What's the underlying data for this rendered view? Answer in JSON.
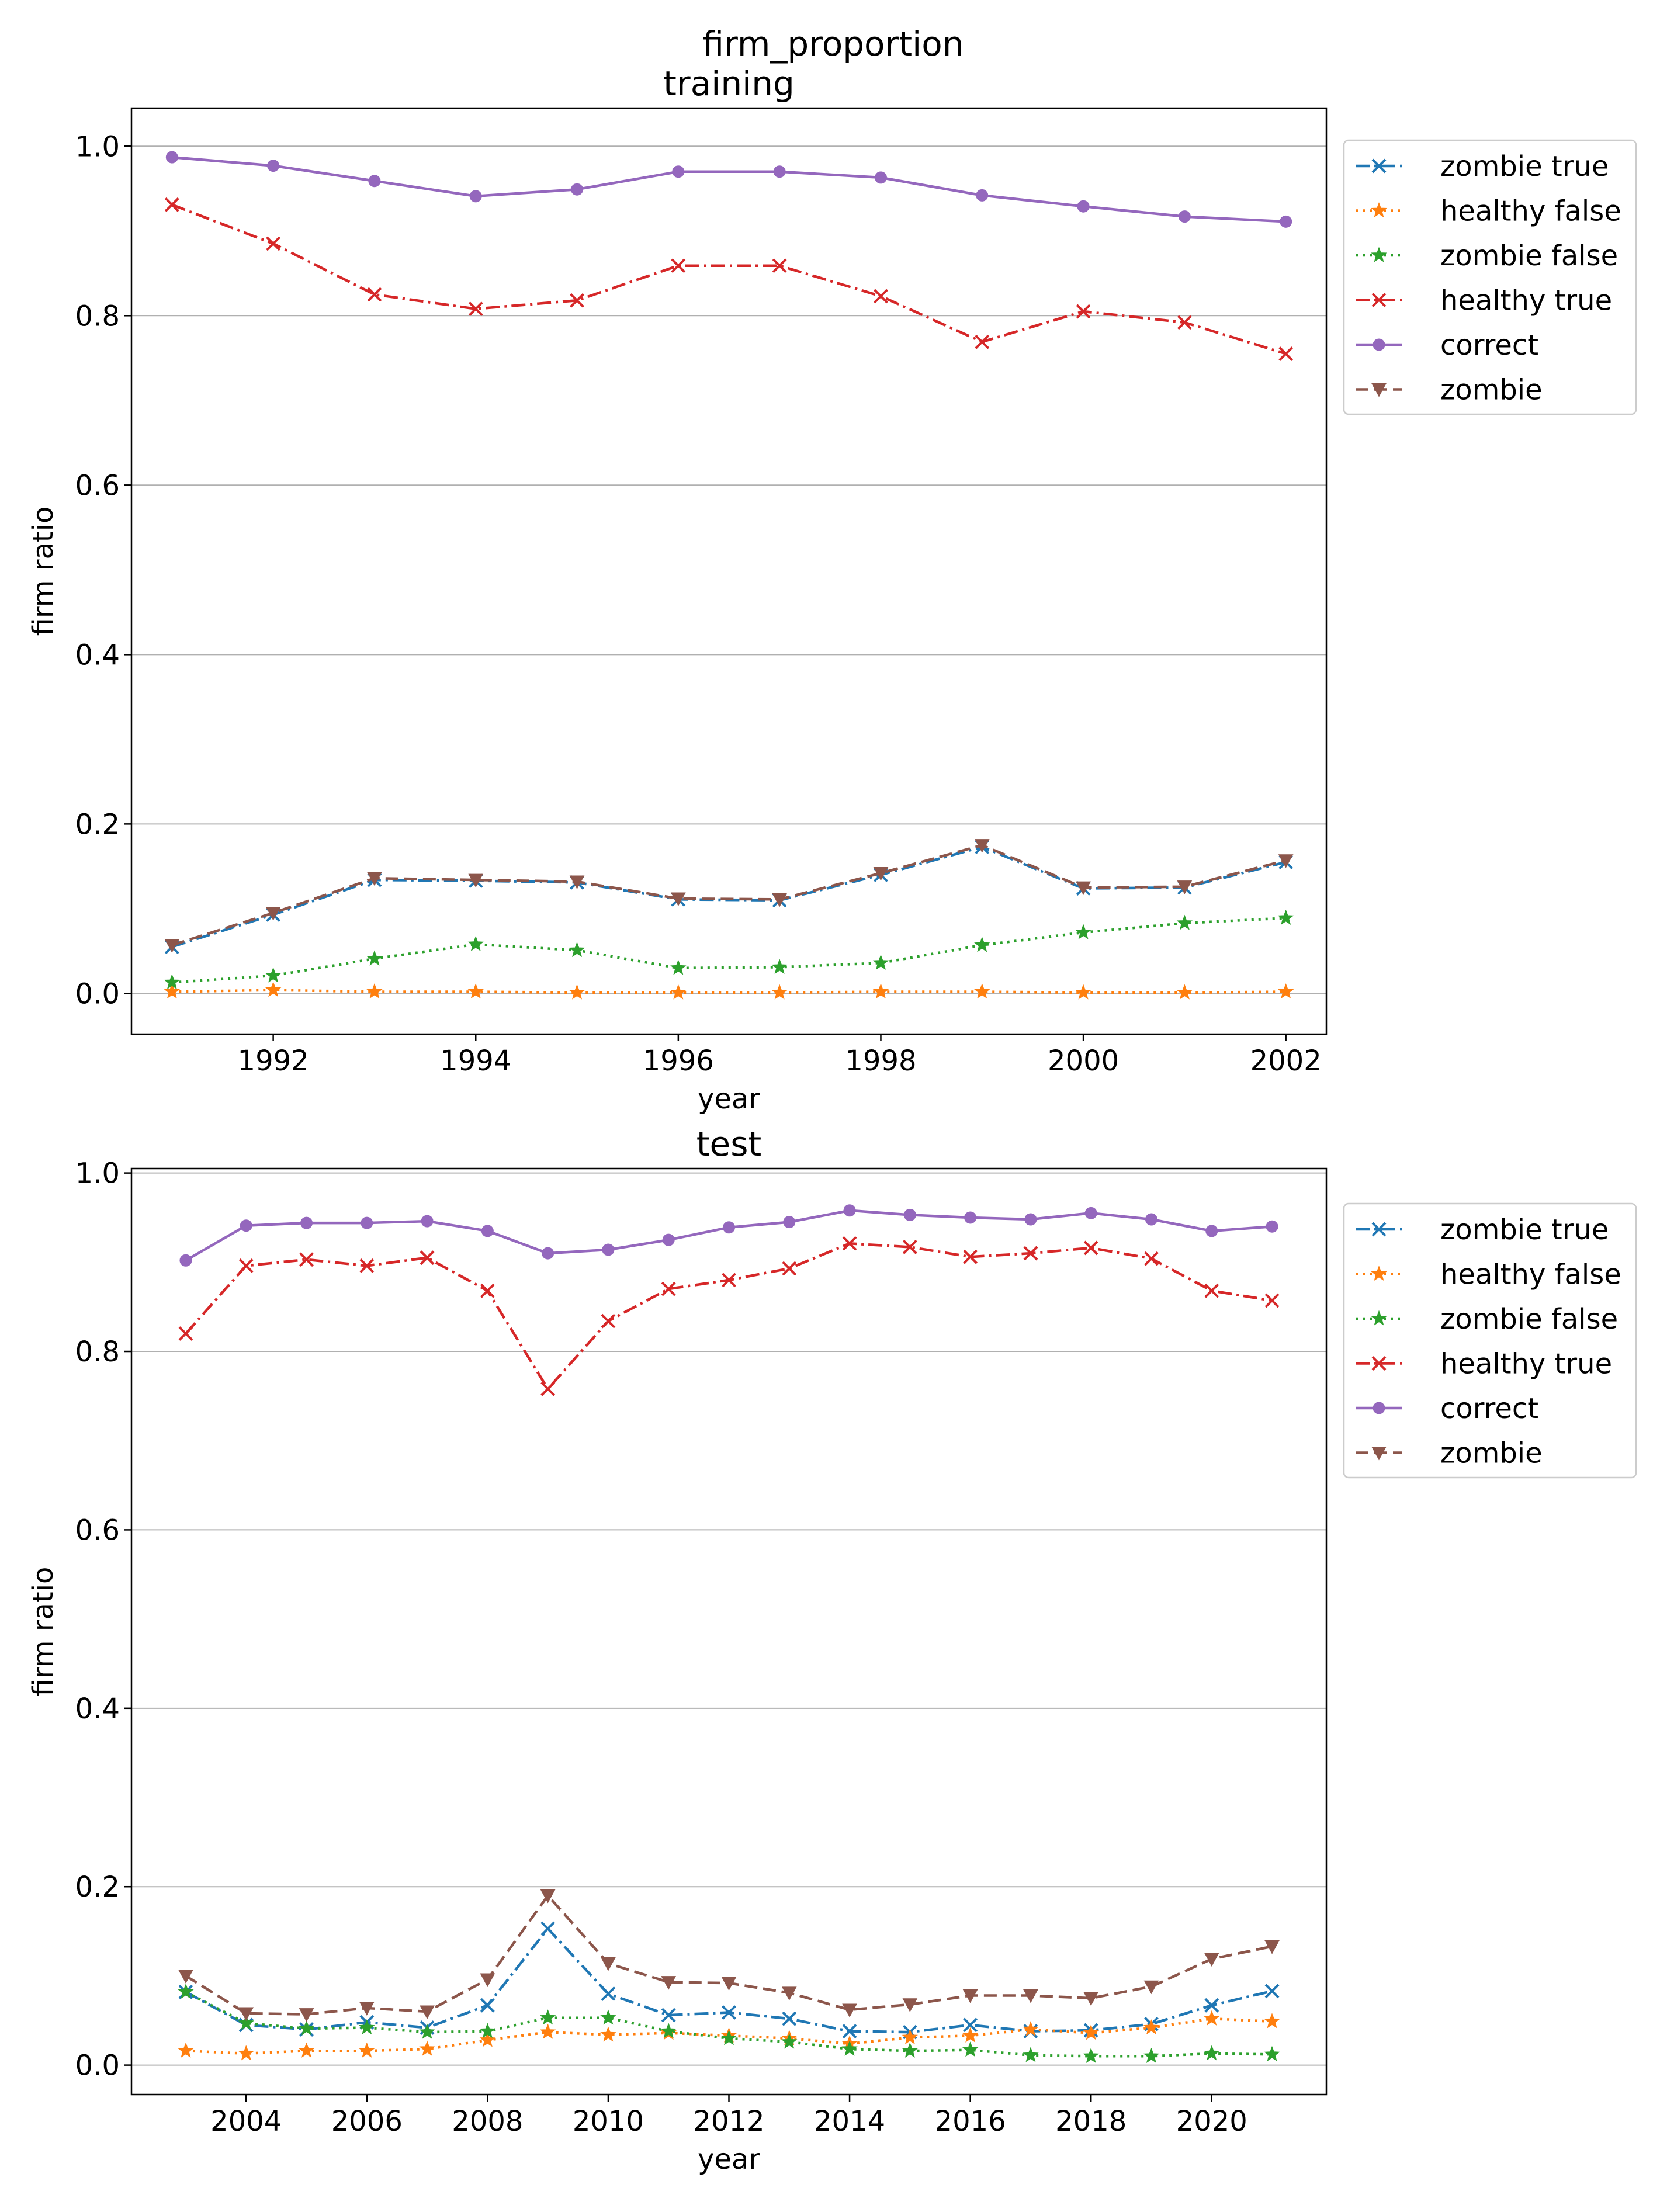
{
  "suptitle": "firm_proportion",
  "colors": {
    "zombie_true": "#1f77b4",
    "healthy_false": "#ff7f0e",
    "zombie_false": "#2ca02c",
    "healthy_true": "#d62728",
    "correct": "#9467bd",
    "zombie": "#8c564b",
    "grid": "#b0b0b0",
    "axis": "#000000"
  },
  "chart_data": [
    {
      "type": "line",
      "title": "training",
      "xlabel": "year",
      "ylabel": "firm ratio",
      "xlim": [
        1990.6,
        2002.4
      ],
      "ylim": [
        -0.048,
        1.045
      ],
      "xticks": [
        1992,
        1994,
        1996,
        1998,
        2000,
        2002
      ],
      "xtick_labels": [
        "1992",
        "1994",
        "1996",
        "1998",
        "2000",
        "2002"
      ],
      "yticks": [
        0.0,
        0.2,
        0.4,
        0.6,
        0.8,
        1.0
      ],
      "ytick_labels": [
        "0.0",
        "0.2",
        "0.4",
        "0.6",
        "0.8",
        "1.0"
      ],
      "grid": "y",
      "legend_position": "outside-right-top",
      "x": [
        1991,
        1992,
        1993,
        1994,
        1995,
        1996,
        1997,
        1998,
        1999,
        2000,
        2001,
        2002
      ],
      "series": [
        {
          "key": "zombie_true",
          "name": "zombie true",
          "marker": "x",
          "dash": "dashdot",
          "values": [
            0.055,
            0.093,
            0.134,
            0.133,
            0.131,
            0.111,
            0.11,
            0.14,
            0.173,
            0.124,
            0.125,
            0.155
          ]
        },
        {
          "key": "healthy_false",
          "name": "healthy false",
          "marker": "star",
          "dash": "dotted",
          "values": [
            0.002,
            0.004,
            0.002,
            0.002,
            0.001,
            0.001,
            0.001,
            0.002,
            0.002,
            0.001,
            0.001,
            0.002
          ]
        },
        {
          "key": "zombie_false",
          "name": "zombie false",
          "marker": "star",
          "dash": "dotted",
          "values": [
            0.013,
            0.021,
            0.041,
            0.058,
            0.051,
            0.03,
            0.031,
            0.036,
            0.057,
            0.072,
            0.083,
            0.089
          ]
        },
        {
          "key": "healthy_true",
          "name": "healthy true",
          "marker": "x",
          "dash": "dashdot",
          "values": [
            0.931,
            0.885,
            0.825,
            0.808,
            0.818,
            0.859,
            0.859,
            0.823,
            0.769,
            0.805,
            0.792,
            0.755
          ]
        },
        {
          "key": "correct",
          "name": "correct",
          "marker": "circle",
          "dash": "solid",
          "values": [
            0.987,
            0.977,
            0.959,
            0.941,
            0.949,
            0.97,
            0.97,
            0.963,
            0.942,
            0.929,
            0.917,
            0.911
          ]
        },
        {
          "key": "zombie",
          "name": "zombie",
          "marker": "tri-down",
          "dash": "dashed",
          "values": [
            0.057,
            0.095,
            0.136,
            0.134,
            0.132,
            0.112,
            0.111,
            0.142,
            0.175,
            0.125,
            0.126,
            0.157
          ]
        }
      ]
    },
    {
      "type": "line",
      "title": "test",
      "xlabel": "year",
      "ylabel": "firm ratio",
      "xlim": [
        2002.1,
        2021.9
      ],
      "ylim": [
        -0.033,
        1.005
      ],
      "xticks": [
        2004,
        2006,
        2008,
        2010,
        2012,
        2014,
        2016,
        2018,
        2020
      ],
      "xtick_labels": [
        "2004",
        "2006",
        "2008",
        "2010",
        "2012",
        "2014",
        "2016",
        "2018",
        "2020"
      ],
      "yticks": [
        0.0,
        0.2,
        0.4,
        0.6,
        0.8,
        1.0
      ],
      "ytick_labels": [
        "0.0",
        "0.2",
        "0.4",
        "0.6",
        "0.8",
        "1.0"
      ],
      "grid": "y",
      "legend_position": "outside-right-top",
      "x": [
        2003,
        2004,
        2005,
        2006,
        2007,
        2008,
        2009,
        2010,
        2011,
        2012,
        2013,
        2014,
        2015,
        2016,
        2017,
        2018,
        2019,
        2020,
        2021
      ],
      "series": [
        {
          "key": "zombie_true",
          "name": "zombie true",
          "marker": "x",
          "dash": "dashdot",
          "values": [
            0.082,
            0.045,
            0.04,
            0.048,
            0.042,
            0.067,
            0.153,
            0.08,
            0.056,
            0.059,
            0.052,
            0.038,
            0.037,
            0.045,
            0.038,
            0.039,
            0.046,
            0.067,
            0.083
          ]
        },
        {
          "key": "healthy_false",
          "name": "healthy false",
          "marker": "star",
          "dash": "dotted",
          "values": [
            0.016,
            0.013,
            0.016,
            0.016,
            0.018,
            0.028,
            0.037,
            0.034,
            0.036,
            0.033,
            0.03,
            0.024,
            0.031,
            0.033,
            0.04,
            0.036,
            0.042,
            0.052,
            0.049
          ]
        },
        {
          "key": "zombie_false",
          "name": "zombie false",
          "marker": "star",
          "dash": "dotted",
          "values": [
            0.082,
            0.047,
            0.041,
            0.042,
            0.037,
            0.038,
            0.053,
            0.053,
            0.038,
            0.03,
            0.026,
            0.018,
            0.016,
            0.017,
            0.011,
            0.01,
            0.01,
            0.013,
            0.012
          ]
        },
        {
          "key": "healthy_true",
          "name": "healthy true",
          "marker": "x",
          "dash": "dashdot",
          "values": [
            0.82,
            0.896,
            0.903,
            0.896,
            0.905,
            0.868,
            0.758,
            0.834,
            0.87,
            0.88,
            0.893,
            0.921,
            0.917,
            0.906,
            0.91,
            0.916,
            0.904,
            0.868,
            0.857
          ]
        },
        {
          "key": "correct",
          "name": "correct",
          "marker": "circle",
          "dash": "solid",
          "values": [
            0.902,
            0.941,
            0.944,
            0.944,
            0.946,
            0.935,
            0.91,
            0.914,
            0.925,
            0.939,
            0.945,
            0.958,
            0.953,
            0.95,
            0.948,
            0.955,
            0.948,
            0.935,
            0.94
          ]
        },
        {
          "key": "zombie",
          "name": "zombie",
          "marker": "tri-down",
          "dash": "dashed",
          "values": [
            0.1,
            0.058,
            0.057,
            0.064,
            0.06,
            0.096,
            0.19,
            0.114,
            0.093,
            0.092,
            0.081,
            0.062,
            0.068,
            0.078,
            0.078,
            0.075,
            0.088,
            0.119,
            0.133
          ]
        }
      ]
    }
  ]
}
